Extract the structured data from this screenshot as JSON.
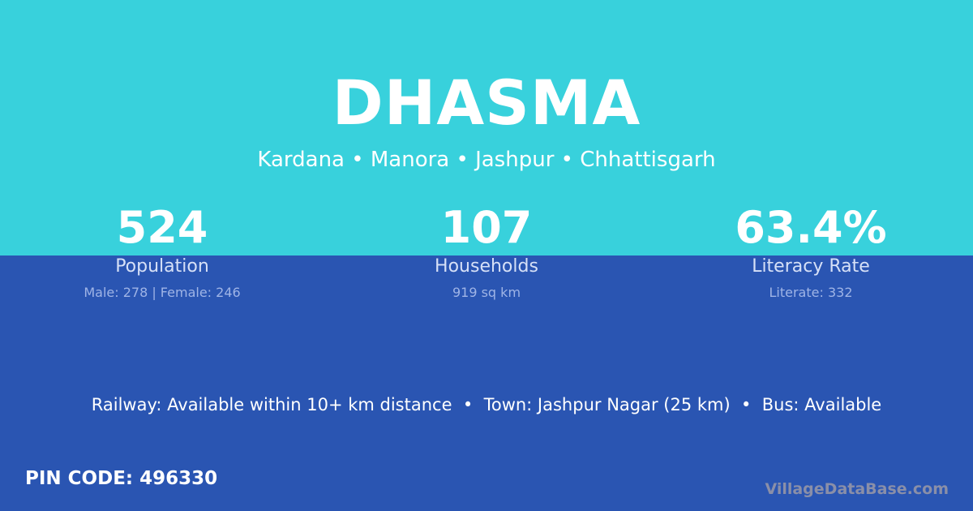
{
  "colors": {
    "top_background": "#38d1dc",
    "bottom_background": "#2a55b2"
  },
  "village": {
    "name": "DHASMA",
    "location": "Kardana • Manora • Jashpur • Chhattisgarh"
  },
  "stats": [
    {
      "value": "524",
      "label": "Population",
      "detail": "Male: 278 | Female: 246"
    },
    {
      "value": "107",
      "label": "Households",
      "detail": "919 sq km"
    },
    {
      "value": "63.4%",
      "label": "Literacy Rate",
      "detail": "Literate: 332"
    }
  ],
  "facilities": "Railway: Available within 10+ km distance  •  Town: Jashpur Nagar (25 km)  •  Bus: Available",
  "pin_code": "PIN CODE: 496330",
  "brand": "VillageDataBase.com"
}
